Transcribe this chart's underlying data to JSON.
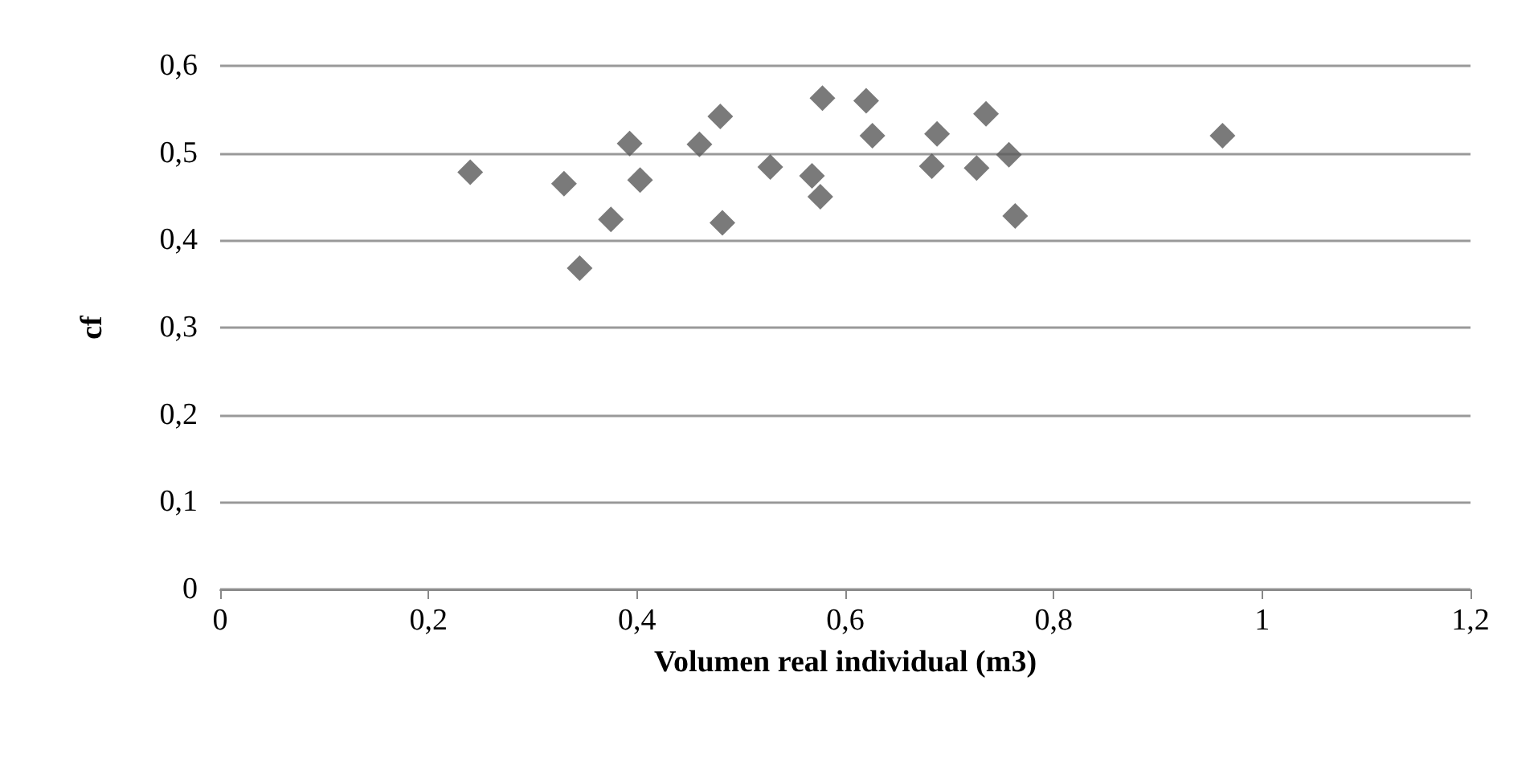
{
  "chart_data": {
    "type": "scatter",
    "xlabel": "Volumen real individual (m3)",
    "ylabel": "cf",
    "x": [
      0.24,
      0.33,
      0.345,
      0.375,
      0.393,
      0.403,
      0.46,
      0.48,
      0.482,
      0.528,
      0.568,
      0.576,
      0.578,
      0.62,
      0.626,
      0.683,
      0.688,
      0.726,
      0.735,
      0.757,
      0.763,
      0.962
    ],
    "values": [
      0.478,
      0.465,
      0.368,
      0.424,
      0.511,
      0.469,
      0.51,
      0.542,
      0.42,
      0.484,
      0.474,
      0.45,
      0.563,
      0.56,
      0.52,
      0.485,
      0.522,
      0.483,
      0.545,
      0.498,
      0.428,
      0.52
    ],
    "color": "#595959",
    "marker": "diamond",
    "xlim": [
      0,
      1.2
    ],
    "xticks": [
      {
        "value": 0,
        "label": "0"
      },
      {
        "value": 0.2,
        "label": "0,2"
      },
      {
        "value": 0.4,
        "label": "0,4"
      },
      {
        "value": 0.6,
        "label": "0,6"
      },
      {
        "value": 0.8,
        "label": "0,8"
      },
      {
        "value": 1,
        "label": "1"
      },
      {
        "value": 1.2,
        "label": "1,2"
      }
    ],
    "ylim": [
      0,
      0.6
    ],
    "yticks": [
      {
        "value": 0,
        "label": "0"
      },
      {
        "value": 0.1,
        "label": "0,1"
      },
      {
        "value": 0.2,
        "label": "0,2"
      },
      {
        "value": 0.3,
        "label": "0,3"
      },
      {
        "value": 0.4,
        "label": "0,4"
      },
      {
        "value": 0.5,
        "label": "0,5"
      },
      {
        "value": 0.6,
        "label": "0,6"
      }
    ],
    "grid": "y"
  }
}
